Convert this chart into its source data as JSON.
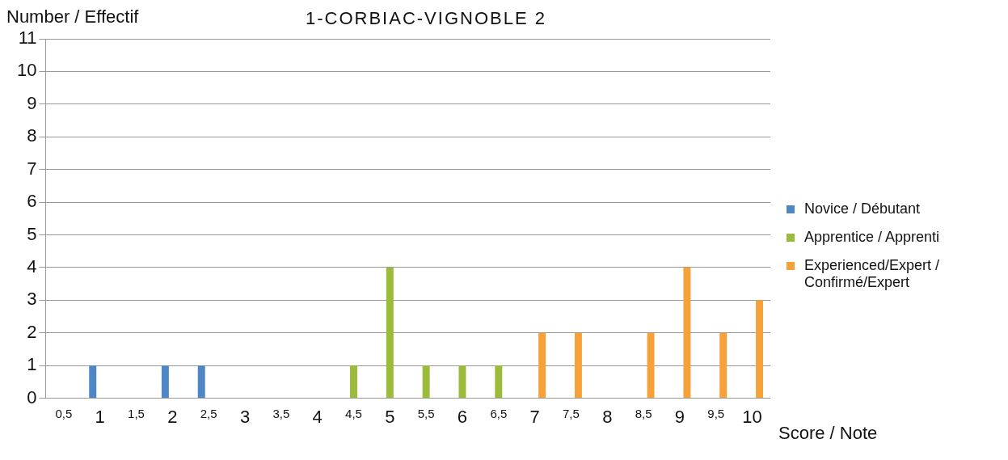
{
  "chart_data": {
    "type": "bar",
    "title": "1-CORBIAC-VIGNOBLE 2",
    "xlabel": "Score / Note",
    "ylabel": "Number / Effectif",
    "categories": [
      "0,5",
      "1",
      "1,5",
      "2",
      "2,5",
      "3",
      "3,5",
      "4",
      "4,5",
      "5",
      "5,5",
      "6",
      "6,5",
      "7",
      "7,5",
      "8",
      "8,5",
      "9",
      "9,5",
      "10"
    ],
    "series": [
      {
        "name": "Novice / Débutant",
        "color": "#4f86c6",
        "values": [
          0,
          1,
          0,
          1,
          1,
          0,
          0,
          0,
          0,
          0,
          0,
          0,
          0,
          0,
          0,
          0,
          0,
          0,
          0,
          0
        ]
      },
      {
        "name": "Apprentice / Apprenti",
        "color": "#9bbb3b",
        "values": [
          0,
          0,
          0,
          0,
          0,
          0,
          0,
          0,
          1,
          4,
          1,
          1,
          1,
          0,
          0,
          0,
          0,
          0,
          0,
          0
        ]
      },
      {
        "name": "Experienced/Expert / Confirmé/Expert",
        "color": "#f7a13a",
        "values": [
          0,
          0,
          0,
          0,
          0,
          0,
          0,
          0,
          0,
          0,
          0,
          0,
          0,
          2,
          2,
          0,
          2,
          4,
          2,
          3
        ]
      }
    ],
    "ylim": [
      0,
      11
    ],
    "yticks": [
      0,
      1,
      2,
      3,
      4,
      5,
      6,
      7,
      8,
      9,
      10,
      11
    ],
    "grid": "y",
    "legend": "right"
  }
}
